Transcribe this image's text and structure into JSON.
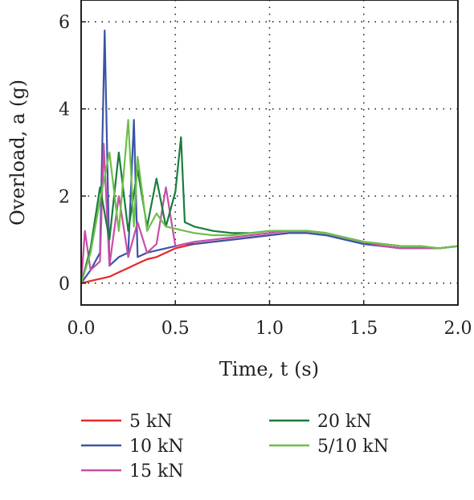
{
  "chart_data": {
    "type": "line",
    "xlabel": "Time, t (s)",
    "ylabel": "Overload, a (g)",
    "xlim": [
      0.0,
      2.0
    ],
    "ylim": [
      -0.5,
      6.5
    ],
    "xticks": [
      "0.0",
      "0.5",
      "1.0",
      "1.5",
      "2.0"
    ],
    "yticks": [
      "0",
      "2",
      "4",
      "6"
    ],
    "grid": "dotted",
    "legend_position": "bottom",
    "series": [
      {
        "name": "5 kN",
        "color": "#e8262a",
        "x": [
          0.0,
          0.05,
          0.1,
          0.15,
          0.2,
          0.25,
          0.3,
          0.35,
          0.4,
          0.45,
          0.5,
          0.55,
          0.6,
          0.7,
          0.8,
          0.9,
          1.0,
          1.1,
          1.2,
          1.3,
          1.4,
          1.5,
          1.6,
          1.7,
          1.8,
          1.9,
          2.0
        ],
        "y": [
          0.0,
          0.05,
          0.1,
          0.15,
          0.25,
          0.35,
          0.45,
          0.55,
          0.6,
          0.7,
          0.8,
          0.85,
          0.9,
          0.95,
          1.0,
          1.05,
          1.1,
          1.15,
          1.15,
          1.1,
          1.0,
          0.9,
          0.85,
          0.8,
          0.8,
          0.8,
          0.85
        ]
      },
      {
        "name": "10 kN",
        "color": "#3b55a5",
        "x": [
          0.0,
          0.05,
          0.1,
          0.125,
          0.15,
          0.2,
          0.25,
          0.28,
          0.3,
          0.35,
          0.4,
          0.45,
          0.5,
          0.55,
          0.6,
          0.7,
          0.8,
          0.9,
          1.0,
          1.1,
          1.2,
          1.3,
          1.4,
          1.5,
          1.6,
          1.7,
          1.8,
          1.9,
          2.0
        ],
        "y": [
          0.0,
          0.3,
          0.7,
          5.8,
          0.4,
          0.6,
          0.7,
          3.75,
          0.6,
          0.7,
          0.75,
          0.8,
          0.85,
          0.9,
          0.9,
          0.95,
          1.0,
          1.05,
          1.1,
          1.15,
          1.15,
          1.1,
          1.0,
          0.9,
          0.85,
          0.8,
          0.8,
          0.8,
          0.85
        ]
      },
      {
        "name": "15 kN",
        "color": "#c74ea6",
        "x": [
          0.0,
          0.02,
          0.05,
          0.1,
          0.12,
          0.15,
          0.2,
          0.25,
          0.3,
          0.35,
          0.4,
          0.45,
          0.5,
          0.55,
          0.6,
          0.7,
          0.8,
          0.9,
          1.0,
          1.1,
          1.2,
          1.3,
          1.4,
          1.5,
          1.6,
          1.7,
          1.8,
          1.9,
          2.0
        ],
        "y": [
          0.0,
          1.2,
          0.3,
          0.5,
          3.2,
          0.4,
          2.0,
          0.6,
          1.4,
          0.7,
          0.9,
          2.2,
          0.85,
          0.9,
          0.95,
          1.0,
          1.05,
          1.1,
          1.15,
          1.2,
          1.2,
          1.15,
          1.05,
          0.95,
          0.85,
          0.8,
          0.8,
          0.8,
          0.85
        ]
      },
      {
        "name": "20 kN",
        "color": "#1a7d3c",
        "x": [
          0.0,
          0.05,
          0.1,
          0.15,
          0.2,
          0.25,
          0.3,
          0.35,
          0.4,
          0.45,
          0.5,
          0.53,
          0.55,
          0.6,
          0.7,
          0.8,
          0.9,
          1.0,
          1.1,
          1.2,
          1.3,
          1.4,
          1.5,
          1.6,
          1.7,
          1.8,
          1.9,
          2.0
        ],
        "y": [
          0.0,
          0.8,
          2.2,
          1.0,
          3.0,
          1.2,
          2.6,
          1.3,
          2.4,
          1.3,
          2.1,
          3.35,
          1.4,
          1.3,
          1.2,
          1.15,
          1.15,
          1.2,
          1.2,
          1.2,
          1.15,
          1.05,
          0.95,
          0.9,
          0.85,
          0.85,
          0.8,
          0.85
        ]
      },
      {
        "name": "5/10 kN",
        "color": "#6cc04a",
        "x": [
          0.0,
          0.05,
          0.1,
          0.15,
          0.2,
          0.25,
          0.28,
          0.3,
          0.35,
          0.4,
          0.45,
          0.5,
          0.55,
          0.6,
          0.7,
          0.8,
          0.9,
          1.0,
          1.1,
          1.2,
          1.3,
          1.4,
          1.5,
          1.6,
          1.7,
          1.8,
          1.9,
          2.0
        ],
        "y": [
          0.0,
          0.7,
          1.9,
          3.0,
          1.2,
          3.75,
          1.3,
          2.9,
          1.2,
          1.6,
          1.3,
          1.25,
          1.2,
          1.15,
          1.1,
          1.1,
          1.15,
          1.2,
          1.2,
          1.2,
          1.15,
          1.05,
          0.95,
          0.9,
          0.85,
          0.85,
          0.8,
          0.85
        ]
      }
    ]
  }
}
